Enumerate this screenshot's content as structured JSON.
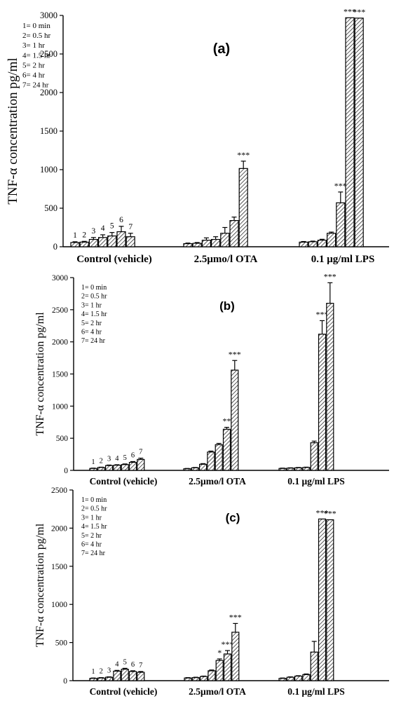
{
  "chart_data": [
    {
      "type": "bar",
      "panel_label": "(a)",
      "ylabel": "TNF-α concentration pg/ml",
      "ylim": [
        0,
        3000
      ],
      "yticks": [
        "0",
        "500",
        "1000",
        "1500",
        "2000",
        "2500",
        "3000"
      ],
      "legend": [
        "1= 0 min",
        "2= 0.5 hr",
        "3= 1 hr",
        "4= 1.5 hr",
        "5= 2 hr",
        "6= 4 hr",
        "7= 24 hr"
      ],
      "legend_position": "top-left",
      "bar_numbers": [
        "1",
        "2",
        "3",
        "4",
        "5",
        "6",
        "7"
      ],
      "categories": [
        "Control (vehicle)",
        "2.5μmo/l OTA",
        "0.1 μg/ml LPS"
      ],
      "groups": [
        {
          "values": [
            55,
            60,
            95,
            120,
            140,
            195,
            130
          ],
          "errors": [
            10,
            10,
            25,
            35,
            45,
            70,
            45
          ],
          "sig": [
            "",
            "",
            "",
            "",
            "",
            "",
            ""
          ]
        },
        {
          "values": [
            40,
            45,
            85,
            95,
            175,
            340,
            1015
          ],
          "errors": [
            8,
            10,
            30,
            35,
            75,
            45,
            95
          ],
          "sig": [
            "",
            "",
            "",
            "",
            "",
            "",
            "***"
          ]
        },
        {
          "values": [
            60,
            65,
            85,
            175,
            570,
            2970,
            2965
          ],
          "errors": [
            8,
            8,
            12,
            15,
            140,
            0,
            0
          ],
          "sig": [
            "",
            "",
            "",
            "",
            "***",
            "***",
            "***"
          ]
        }
      ]
    },
    {
      "type": "bar",
      "panel_label": "(b)",
      "ylabel": "TNF-α concentration pg/ml",
      "ylim": [
        0,
        3000
      ],
      "yticks": [
        "0",
        "500",
        "1000",
        "1500",
        "2000",
        "2500",
        "3000"
      ],
      "legend": [
        "1= 0 min",
        "2= 0.5 hr",
        "3= 1 hr",
        "4= 1.5 hr",
        "5= 2 hr",
        "6= 4 hr",
        "7= 24 hr"
      ],
      "legend_position": "top-left",
      "bar_numbers": [
        "1",
        "2",
        "3",
        "4",
        "5",
        "6",
        "7"
      ],
      "categories": [
        "Control (vehicle)",
        "2.5μmo/l OTA",
        "0.1 μg/ml LPS"
      ],
      "groups": [
        {
          "values": [
            30,
            45,
            75,
            80,
            90,
            125,
            170
          ],
          "errors": [
            5,
            5,
            8,
            8,
            10,
            12,
            20
          ],
          "sig": [
            "",
            "",
            "",
            "",
            "",
            "",
            ""
          ]
        },
        {
          "values": [
            25,
            40,
            95,
            285,
            400,
            640,
            1560
          ],
          "errors": [
            5,
            5,
            10,
            15,
            20,
            30,
            150
          ],
          "sig": [
            "",
            "",
            "",
            "",
            "",
            "**",
            "***"
          ]
        },
        {
          "values": [
            30,
            35,
            40,
            45,
            430,
            2120,
            2600
          ],
          "errors": [
            5,
            5,
            5,
            5,
            25,
            210,
            320
          ],
          "sig": [
            "",
            "",
            "",
            "",
            "",
            "***",
            "***"
          ]
        }
      ]
    },
    {
      "type": "bar",
      "panel_label": "(c)",
      "ylabel": "TNF-α concentration pg/ml",
      "ylim": [
        0,
        2500
      ],
      "yticks": [
        "0",
        "500",
        "1000",
        "1500",
        "2000",
        "2500"
      ],
      "legend": [
        "1= 0 min",
        "2= 0.5 hr",
        "3= 1 hr",
        "4= 1.5 hr",
        "5= 2 hr",
        "6= 4 hr",
        "7= 24 hr"
      ],
      "legend_position": "top-left",
      "bar_numbers": [
        "1",
        "2",
        "3",
        "4",
        "5",
        "6",
        "7"
      ],
      "categories": [
        "Control (vehicle)",
        "2.5μmo/l OTA",
        "0.1 μg/ml LPS"
      ],
      "groups": [
        {
          "values": [
            30,
            35,
            45,
            125,
            150,
            120,
            110
          ],
          "errors": [
            5,
            5,
            5,
            10,
            12,
            10,
            10
          ],
          "sig": [
            "",
            "",
            "",
            "",
            "",
            "",
            ""
          ]
        },
        {
          "values": [
            35,
            40,
            55,
            130,
            265,
            350,
            635
          ],
          "errors": [
            5,
            5,
            5,
            10,
            20,
            45,
            115
          ],
          "sig": [
            "",
            "",
            "",
            "",
            "*",
            "***",
            "***"
          ]
        },
        {
          "values": [
            30,
            45,
            60,
            80,
            375,
            2120,
            2110
          ],
          "errors": [
            5,
            5,
            5,
            8,
            140,
            0,
            0
          ],
          "sig": [
            "",
            "",
            "",
            "",
            "",
            "***",
            "***"
          ]
        }
      ]
    }
  ]
}
